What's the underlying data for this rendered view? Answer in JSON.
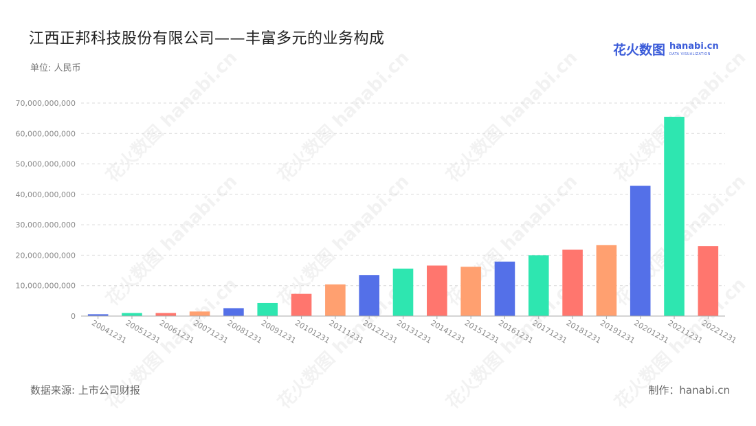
{
  "header": {
    "title": "江西正邦科技股份有限公司——丰富多元的业务构成",
    "unit": "单位: 人民币"
  },
  "logo": {
    "main": "花火数图",
    "sub": "hanabi.cn",
    "tagline": "DATA VISUALIZATION"
  },
  "footer": {
    "source": "数据来源: 上市公司财报",
    "maker": "制作：hanabi.cn"
  },
  "watermark": {
    "text": "花火数图 hanabi.cn"
  },
  "colors": [
    "#5470e8",
    "#2ee6b0",
    "#ff766e",
    "#ffa070"
  ],
  "chart_data": {
    "type": "bar",
    "categories": [
      "20041231",
      "20051231",
      "20061231",
      "20071231",
      "20081231",
      "20091231",
      "20101231",
      "20111231",
      "20121231",
      "20131231",
      "20141231",
      "20151231",
      "20161231",
      "20171231",
      "20181231",
      "20191231",
      "20201231",
      "20211231",
      "20221231"
    ],
    "values": [
      600000000,
      1000000000,
      1000000000,
      1500000000,
      2600000000,
      4300000000,
      7300000000,
      10400000000,
      13500000000,
      15600000000,
      16600000000,
      16200000000,
      17900000000,
      20000000000,
      21800000000,
      23300000000,
      42800000000,
      65500000000,
      23000000000
    ],
    "y_ticks": [
      "0",
      "10,000,000,000",
      "20,000,000,000",
      "30,000,000,000",
      "40,000,000,000",
      "50,000,000,000",
      "60,000,000,000",
      "70,000,000,000"
    ],
    "ylim": [
      0,
      70000000000
    ],
    "grid": true,
    "legend": "none"
  }
}
